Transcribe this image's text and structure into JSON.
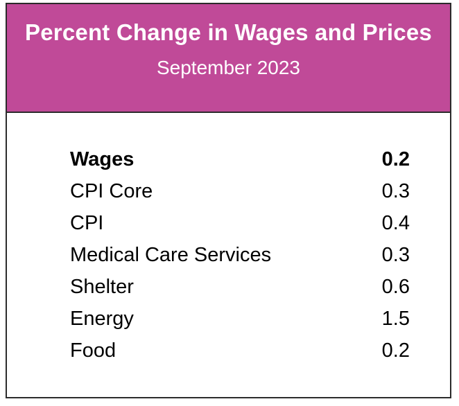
{
  "chart_data": {
    "type": "table",
    "title": "Percent Change in Wages and Prices",
    "subtitle": "September 2023",
    "header_color": "#c04a98",
    "rows": [
      {
        "label": "Wages",
        "value": "0.2",
        "bold": true
      },
      {
        "label": "CPI Core",
        "value": "0.3",
        "bold": false
      },
      {
        "label": "CPI",
        "value": "0.4",
        "bold": false
      },
      {
        "label": "Medical Care Services",
        "value": "0.3",
        "bold": false
      },
      {
        "label": "Shelter",
        "value": "0.6",
        "bold": false
      },
      {
        "label": "Energy",
        "value": "1.5",
        "bold": false
      },
      {
        "label": "Food",
        "value": "0.2",
        "bold": false
      }
    ]
  }
}
